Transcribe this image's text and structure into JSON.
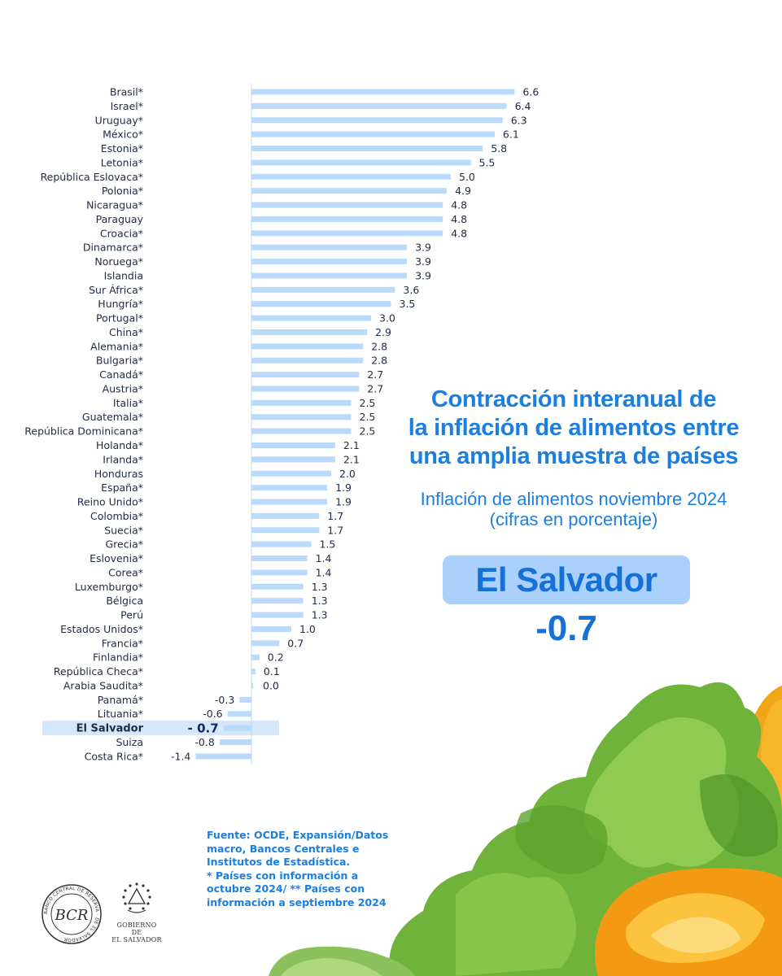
{
  "colors": {
    "bar": "#b9dafb",
    "highlight_band": "#d6e6f9",
    "title_blue": "#1a7fe0",
    "pill": "#a9d1fb",
    "text_dark": "#1f2a44"
  },
  "title": "Contracción interanual de la inflación de alimentos entre una amplia muestra de países",
  "title_lines": [
    "Contracción interanual de",
    "la inflación de alimentos entre",
    "una amplia muestra de países"
  ],
  "subtitle_lines": [
    "Inflación de alimentos noviembre 2024",
    "(cifras en porcentaje)"
  ],
  "highlight": {
    "country": "El Salvador",
    "value": "-0.7"
  },
  "source_lines": [
    "Fuente: OCDE, Expansión/Datos",
    "macro, Bancos Centrales e",
    "Institutos de Estadística.",
    "*    Países con información a",
    "octubre 2024/ **  Países con",
    "información a septiembre 2024"
  ],
  "logos": {
    "bcr_text": "BCR",
    "bcr_ring_text": "BANCO CENTRAL DE RESERVA · DE EL SALVADOR ·",
    "gov_text_lines": [
      "GOBIERNO DE",
      "EL SALVADOR"
    ]
  },
  "chart_data": {
    "type": "bar",
    "orientation": "horizontal",
    "highlight_category": "El Salvador",
    "categories": [
      "Brasil*",
      "Israel*",
      "Uruguay*",
      "México*",
      "Estonia*",
      "Letonia*",
      "República Eslovaca*",
      "Polonia*",
      "Nicaragua*",
      "Paraguay",
      "Croacia*",
      "Dinamarca*",
      "Noruega*",
      "Islandia",
      "Sur África*",
      "Hungría*",
      "Portugal*",
      "China*",
      "Alemania*",
      "Bulgaria*",
      "Canadá*",
      "Austria*",
      "Italia*",
      "Guatemala*",
      "República Dominicana*",
      "Holanda*",
      "Irlanda*",
      "Honduras",
      "España*",
      "Reino Unido*",
      "Colombia*",
      "Suecia*",
      "Grecia*",
      "Eslovenia*",
      "Corea*",
      "Luxemburgo*",
      "Bélgica",
      "Perú",
      "Estados Unidos*",
      "Francia*",
      "Finlandia*",
      "República Checa*",
      "Arabia Saudita*",
      "Panamá*",
      "Lituania*",
      "El Salvador",
      "Suiza",
      "Costa Rica*"
    ],
    "values": [
      6.6,
      6.4,
      6.3,
      6.1,
      5.8,
      5.5,
      5.0,
      4.9,
      4.8,
      4.8,
      4.8,
      3.9,
      3.9,
      3.9,
      3.6,
      3.5,
      3.0,
      2.9,
      2.8,
      2.8,
      2.7,
      2.7,
      2.5,
      2.5,
      2.5,
      2.1,
      2.1,
      2.0,
      1.9,
      1.9,
      1.7,
      1.7,
      1.5,
      1.4,
      1.4,
      1.3,
      1.3,
      1.3,
      1.0,
      0.7,
      0.2,
      0.1,
      0.0,
      -0.3,
      -0.6,
      -0.7,
      -0.8,
      -1.4
    ],
    "value_labels": [
      "6.6",
      "6.4",
      "6.3",
      "6.1",
      "5.8",
      "5.5",
      "5.0",
      "4.9",
      "4.8",
      "4.8",
      "4.8",
      "3.9",
      "3.9",
      "3.9",
      "3.6",
      "3.5",
      "3.0",
      "2.9",
      "2.8",
      "2.8",
      "2.7",
      "2.7",
      "2.5",
      "2.5",
      "2.5",
      "2.1",
      "2.1",
      "2.0",
      "1.9",
      "1.9",
      "1.7",
      "1.7",
      "1.5",
      "1.4",
      "1.4",
      "1.3",
      "1.3",
      "1.3",
      "1.0",
      "0.7",
      "0.2",
      "0.1",
      "0.0",
      "-0.3",
      "-0.6",
      "- 0.7",
      "-0.8",
      "-1.4"
    ]
  }
}
